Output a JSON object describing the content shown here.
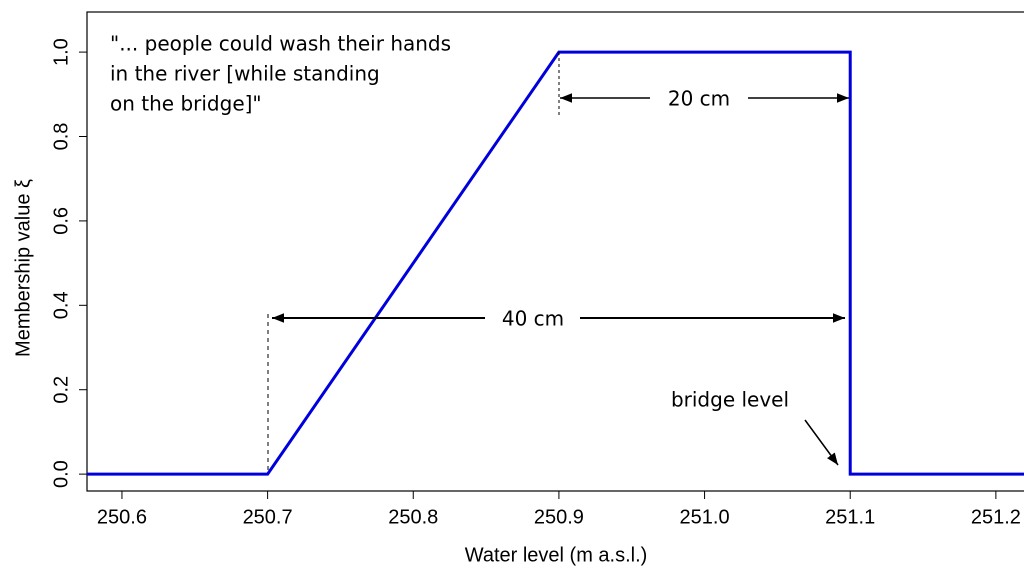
{
  "chart_data": {
    "type": "line",
    "xlabel": "Water level (m a.s.l.)",
    "ylabel": "Membership value ξ",
    "x": [
      250.5,
      250.7,
      250.9,
      251.1,
      251.1,
      251.3
    ],
    "series": [
      {
        "color": "#0000dd",
        "values": [
          0,
          0,
          1,
          1,
          0,
          0
        ]
      }
    ],
    "xlim": [
      250.576,
      251.22
    ],
    "ylim": [
      -0.04,
      1.095
    ],
    "xticks": [
      250.6,
      250.7,
      250.8,
      250.9,
      {
        "value": 251,
        "label": "251.0"
      },
      251.1,
      251.2
    ],
    "yticks": [
      {
        "value": 0,
        "label": "0.0"
      },
      0.2,
      0.4,
      0.6,
      0.8,
      {
        "value": 1,
        "label": "1.0"
      }
    ],
    "annotations": {
      "quote": [
        "\"... people could wash their hands",
        "in the river [while standing",
        "on the bridge]\""
      ],
      "width_20": "20 cm",
      "width_40": "40 cm",
      "bridge": "bridge level"
    }
  }
}
